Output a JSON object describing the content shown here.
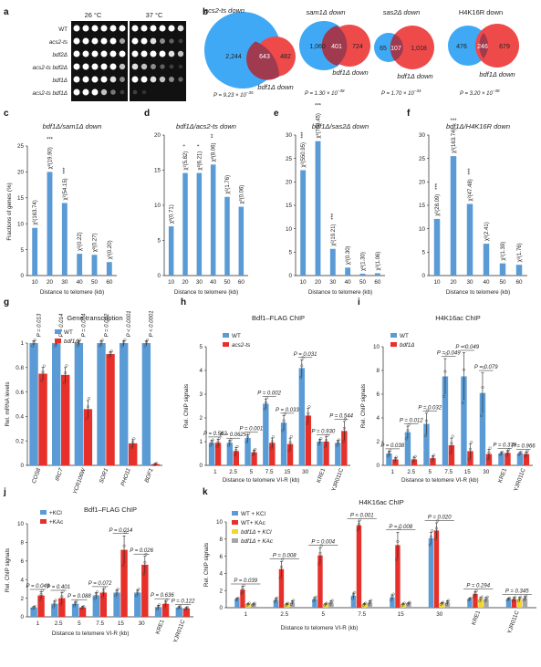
{
  "colors": {
    "blue": "#5b9bd5",
    "red": "#e8302a",
    "yellow": "#f2d72a",
    "gray": "#a6a6a6",
    "venn_blue": "#3fa9f5",
    "venn_red": "#ef4a4a",
    "venn_overlap": "#a03a4e"
  },
  "panels": {
    "a": "a",
    "b": "b",
    "c": "c",
    "d": "d",
    "e": "e",
    "f": "f",
    "g": "g",
    "h": "h",
    "i": "i",
    "j": "j",
    "k": "k"
  },
  "panel_a": {
    "temps": [
      "26 °C",
      "37 °C"
    ],
    "strains": [
      "WT",
      "acs2-ts",
      "bdf2Δ",
      "acs2-ts bdf2Δ",
      "bdf1Δ",
      "acs2-ts bdf1Δ"
    ],
    "growth_26": [
      [
        1,
        1,
        1,
        1,
        1,
        1
      ],
      [
        1,
        1,
        1,
        1,
        1,
        0.7
      ],
      [
        1,
        1,
        1,
        1,
        1,
        1
      ],
      [
        1,
        1,
        1,
        1,
        1,
        0.8
      ],
      [
        1,
        1,
        1,
        1,
        0.9,
        0.6
      ],
      [
        1,
        1,
        1,
        0.8,
        0.5,
        0.2
      ]
    ],
    "growth_37": [
      [
        1,
        1,
        1,
        1,
        1,
        0.9
      ],
      [
        1,
        1,
        0.9,
        0.6,
        0.4,
        0.2
      ],
      [
        1,
        1,
        1,
        1,
        0.9,
        0.8
      ],
      [
        0.9,
        0.8,
        0.6,
        0.4,
        0.2,
        0.1
      ],
      [
        1,
        1,
        0.9,
        0.8,
        0.6,
        0.4
      ],
      [
        0.2,
        0.1,
        0,
        0,
        0,
        0
      ]
    ]
  },
  "panel_b": {
    "venns": [
      {
        "left_title": "acs2-ts down",
        "right_title": "bdf1Δ down",
        "left_only": "2,244",
        "overlap": "643",
        "right_only": "482",
        "p_base": "P = 9.23 × 10",
        "p_exp": "−35"
      },
      {
        "left_title": "sam1Δ down",
        "right_title": "bdf1Δ down",
        "left_only": "1,060",
        "overlap": "401",
        "right_only": "724",
        "p_base": "P = 1.30 × 10",
        "p_exp": "−38"
      },
      {
        "left_title": "sas2Δ down",
        "right_title": "bdf1Δ down",
        "left_only": "65",
        "overlap": "107",
        "right_only": "1,018",
        "p_base": "P = 1.70 × 10",
        "p_exp": "−34"
      },
      {
        "left_title": "H4K16R down",
        "right_title": "bdf1Δ down",
        "left_only": "476",
        "overlap": "246",
        "right_only": "679",
        "p_base": "P = 3.20 × 10",
        "p_exp": "−38"
      }
    ]
  },
  "shared": {
    "ylabel_fraction": "Fractions of genes (%)",
    "xlabel_kb": "Distance to telomere (kb)",
    "xlabel_vir": "Distance to telomere VI-R (kb)",
    "ylabel_mrna": "Rel. mRNA levels",
    "ylabel_chip": "Rel. ChIP signals",
    "sig3": "***",
    "sig2": "**",
    "sig1": "*"
  },
  "chart_data": [
    {
      "panel": "c",
      "type": "bar",
      "title": "bdf1Δ/sam1Δ down",
      "categories": [
        "10",
        "20",
        "30",
        "40",
        "50",
        "60"
      ],
      "values": [
        9.2,
        20,
        14,
        4.2,
        4,
        2.6
      ],
      "ylim": [
        0,
        25
      ],
      "yticks": [
        0,
        5,
        10,
        15,
        20,
        25
      ],
      "annotations": [
        "χ²(163.74)",
        "χ²(19.90)",
        "χ²(54.15)",
        "χ²(0.22)",
        "χ²(0.27)",
        "χ²(0.20)"
      ],
      "stars": [
        "",
        "***",
        "***",
        "",
        "",
        ""
      ],
      "star_after": [
        true,
        false,
        true,
        false,
        false,
        false
      ]
    },
    {
      "panel": "d",
      "type": "bar",
      "title": "bdf1Δ/acs2-ts down",
      "categories": [
        "10",
        "20",
        "30",
        "40",
        "50",
        "60"
      ],
      "values": [
        7,
        14.6,
        14.6,
        15.8,
        11.2,
        9.8
      ],
      "ylim": [
        0,
        20
      ],
      "yticks": [
        0,
        5,
        10,
        15,
        20
      ],
      "annotations": [
        "χ²(0.71)",
        "χ²(5.82)",
        "χ²(6.21)",
        "χ²(8.06)",
        "χ²(1.76)",
        "χ²(0.06)"
      ],
      "stars": [
        "",
        "*",
        "*",
        "**",
        "",
        ""
      ],
      "star_after": [
        false,
        true,
        true,
        true,
        false,
        false
      ]
    },
    {
      "panel": "e",
      "type": "bar",
      "title": "bdf1Δ/sas2Δ down",
      "categories": [
        "10",
        "20",
        "30",
        "40",
        "50",
        "60"
      ],
      "values": [
        22.5,
        28.7,
        5.7,
        1.7,
        0.4,
        0.5
      ],
      "ylim": [
        0,
        30
      ],
      "yticks": [
        0,
        5,
        10,
        15,
        20,
        25,
        30
      ],
      "annotations": [
        "χ²(550.95)",
        "χ²(748.45)",
        "χ²(19.21)",
        "χ²(0.30)",
        "χ²(1.30)",
        "χ²(1.06)"
      ],
      "stars": [
        "***",
        "***",
        "***",
        "",
        "",
        ""
      ],
      "star_after": [
        true,
        false,
        true,
        false,
        false,
        false
      ]
    },
    {
      "panel": "f",
      "type": "bar",
      "title": "bdf1Δ/H4K16R down",
      "categories": [
        "10",
        "20",
        "30",
        "40",
        "50",
        "60"
      ],
      "values": [
        12.1,
        25.5,
        15.3,
        6.8,
        2.6,
        2.3
      ],
      "ylim": [
        0,
        30
      ],
      "yticks": [
        0,
        5,
        10,
        15,
        20,
        25,
        30
      ],
      "annotations": [
        "χ²(28.09)",
        "χ²(163.74)",
        "χ²(47.48)",
        "χ²(2.41)",
        "χ²(1.39)",
        "χ²(1.76)"
      ],
      "stars": [
        "***",
        "***",
        "***",
        "",
        "",
        ""
      ],
      "star_after": [
        true,
        false,
        true,
        false,
        false,
        false
      ]
    },
    {
      "panel": "g",
      "type": "bar",
      "title": "Gene transcription",
      "categories": [
        "COS8",
        "IRC7",
        "YCR106W",
        "SOR1",
        "PHO11",
        "BDF1"
      ],
      "ylim": [
        0,
        1.0
      ],
      "yticks": [
        0,
        0.2,
        0.4,
        0.6,
        0.8,
        1.0
      ],
      "series": [
        {
          "name": "WT",
          "values": [
            1,
            1,
            1,
            1,
            1,
            1
          ],
          "err": [
            0.02,
            0.02,
            0.02,
            0.02,
            0.02,
            0.02
          ]
        },
        {
          "name": "bdf1Δ",
          "values": [
            0.75,
            0.74,
            0.46,
            0.91,
            0.18,
            0.01
          ],
          "err": [
            0.05,
            0.06,
            0.07,
            0.02,
            0.03,
            0.005
          ]
        }
      ],
      "pvalues": [
        "P = 0.013",
        "P = 0.014",
        "P = 0.004",
        "P = 0.002",
        "P < 0.0001",
        "P < 0.0001"
      ]
    },
    {
      "panel": "h",
      "type": "bar",
      "title": "Bdf1–FLAG ChIP",
      "categories": [
        "1",
        "2.5",
        "5",
        "7.5",
        "15",
        "30",
        "KRE1",
        "YJR011C"
      ],
      "ylim": [
        0,
        5
      ],
      "yticks": [
        0,
        1,
        2,
        3,
        4,
        5
      ],
      "series": [
        {
          "name": "WT",
          "values": [
            0.95,
            0.95,
            1.15,
            2.6,
            1.8,
            4.1,
            1.0,
            0.95
          ],
          "err": [
            0.1,
            0.1,
            0.15,
            0.2,
            0.3,
            0.35,
            0.1,
            0.1
          ]
        },
        {
          "name": "acs2-ts",
          "values": [
            0.95,
            0.6,
            0.55,
            0.95,
            0.9,
            2.1,
            1.0,
            1.45
          ],
          "err": [
            0.15,
            0.15,
            0.1,
            0.2,
            0.25,
            0.3,
            0.2,
            0.4
          ]
        }
      ],
      "pvalues": [
        "P = 0.562",
        "P = 0.0625",
        "P = 0.001",
        "P = 0.002",
        "P = 0.033",
        "P = 0.031",
        "P = 0.930",
        "P = 0.544"
      ]
    },
    {
      "panel": "i",
      "type": "bar",
      "title": "H4K16ac ChIP",
      "categories": [
        "1",
        "2.5",
        "5",
        "7.5",
        "15",
        "30",
        "KRE1",
        "YJR011C"
      ],
      "ylim": [
        0,
        10
      ],
      "yticks": [
        0,
        2,
        4,
        6,
        8,
        10
      ],
      "series": [
        {
          "name": "WT",
          "values": [
            1.0,
            2.8,
            3.5,
            7.5,
            7.5,
            6.1,
            1.0,
            1.0
          ],
          "err": [
            0.2,
            0.5,
            0.9,
            1.5,
            2.0,
            1.7,
            0.1,
            0.1
          ]
        },
        {
          "name": "bdf1Δ",
          "values": [
            0.5,
            0.5,
            0.6,
            1.7,
            1.2,
            0.95,
            1.05,
            0.95
          ],
          "err": [
            0.15,
            0.2,
            0.2,
            0.6,
            0.6,
            0.4,
            0.2,
            0.2
          ]
        }
      ],
      "pvalues": [
        "P = 0.038",
        "P = 0.012",
        "P = 0.032",
        "P = 0.049",
        "P = 0.049",
        "P = 0.079",
        "P = 0.379",
        "P = 0.966"
      ]
    },
    {
      "panel": "j",
      "type": "bar",
      "title": "Bdf1–FLAG ChIP",
      "categories": [
        "1",
        "2.5",
        "5",
        "7.5",
        "15",
        "30",
        "KRE1",
        "YJR011C"
      ],
      "ylim": [
        0,
        10
      ],
      "yticks": [
        0,
        2,
        4,
        6,
        8,
        10
      ],
      "series": [
        {
          "name": "+KCl",
          "values": [
            1.0,
            1.4,
            1.4,
            2.3,
            2.6,
            2.6,
            1.05,
            1.0
          ],
          "err": [
            0.1,
            0.3,
            0.2,
            0.3,
            0.3,
            0.3,
            0.2,
            0.1
          ]
        },
        {
          "name": "+KAc",
          "values": [
            2.3,
            2.0,
            1.0,
            2.6,
            7.2,
            5.6,
            1.4,
            0.9
          ],
          "err": [
            0.4,
            0.6,
            0.1,
            0.4,
            1.5,
            0.9,
            0.3,
            0.1
          ]
        }
      ],
      "pvalues": [
        "P = 0.049",
        "P = 0.401",
        "P = 0.088",
        "P = 0.072",
        "P = 0.014",
        "P = 0.026",
        "P = 0.636",
        "P = 0.122"
      ]
    },
    {
      "panel": "k",
      "type": "bar",
      "title": "H4K16ac ChIP",
      "categories": [
        "1",
        "2.5",
        "5",
        "7.5",
        "15",
        "30",
        "KRE1",
        "YJR011C"
      ],
      "ylim": [
        0,
        10
      ],
      "yticks": [
        0,
        2,
        4,
        6,
        8,
        10
      ],
      "series": [
        {
          "name": "WT + KCl",
          "values": [
            1.0,
            0.9,
            1.0,
            1.4,
            1.2,
            8.1,
            1.0,
            1.0
          ],
          "err": [
            0.1,
            0.2,
            0.2,
            0.3,
            0.3,
            0.7,
            0.1,
            0.1
          ]
        },
        {
          "name": "WT+ KAc",
          "values": [
            2.1,
            4.5,
            6.1,
            9.6,
            7.3,
            9.0,
            1.6,
            1.0
          ],
          "err": [
            0.4,
            0.9,
            0.9,
            0.5,
            1.5,
            0.9,
            0.3,
            0.2
          ]
        },
        {
          "name": "bdf1Δ + KCl",
          "values": [
            0.4,
            0.4,
            0.4,
            0.4,
            0.4,
            0.5,
            1.0,
            1.0
          ],
          "err": [
            0.1,
            0.1,
            0.1,
            0.1,
            0.1,
            0.1,
            0.2,
            0.2
          ]
        },
        {
          "name": "bdf1Δ + KAc",
          "values": [
            0.4,
            0.6,
            0.6,
            0.6,
            0.5,
            0.6,
            1.0,
            1.1
          ],
          "err": [
            0.1,
            0.2,
            0.2,
            0.2,
            0.1,
            0.2,
            0.2,
            0.2
          ]
        }
      ],
      "pvalues": [
        "P = 0.039",
        "P = 0.008",
        "P = 0.004",
        "P < 0.001",
        "P = 0.008",
        "P = 0.020",
        "P = 0.294",
        "P = 0.345"
      ]
    }
  ]
}
